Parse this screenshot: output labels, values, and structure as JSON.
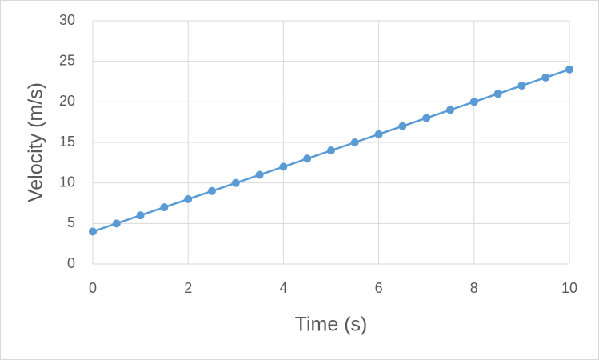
{
  "chart_data": {
    "type": "scatter-line",
    "x_label": "Time (s)",
    "y_label": "Velocity (m/s)",
    "x": [
      0,
      0.5,
      1,
      1.5,
      2,
      2.5,
      3,
      3.5,
      4,
      4.5,
      5,
      5.5,
      6,
      6.5,
      7,
      7.5,
      8,
      8.5,
      9,
      9.5,
      10
    ],
    "values": [
      4,
      5,
      6,
      7,
      8,
      9,
      10,
      11,
      12,
      13,
      14,
      15,
      16,
      17,
      18,
      19,
      20,
      21,
      22,
      23,
      24
    ],
    "color": "#5b9bd5",
    "xlim": [
      0,
      10
    ],
    "xticks": [
      0,
      2,
      4,
      6,
      8,
      10
    ],
    "ylim": [
      0,
      30
    ],
    "yticks": [
      0,
      5,
      10,
      15,
      20,
      25,
      30
    ],
    "grid": true
  }
}
